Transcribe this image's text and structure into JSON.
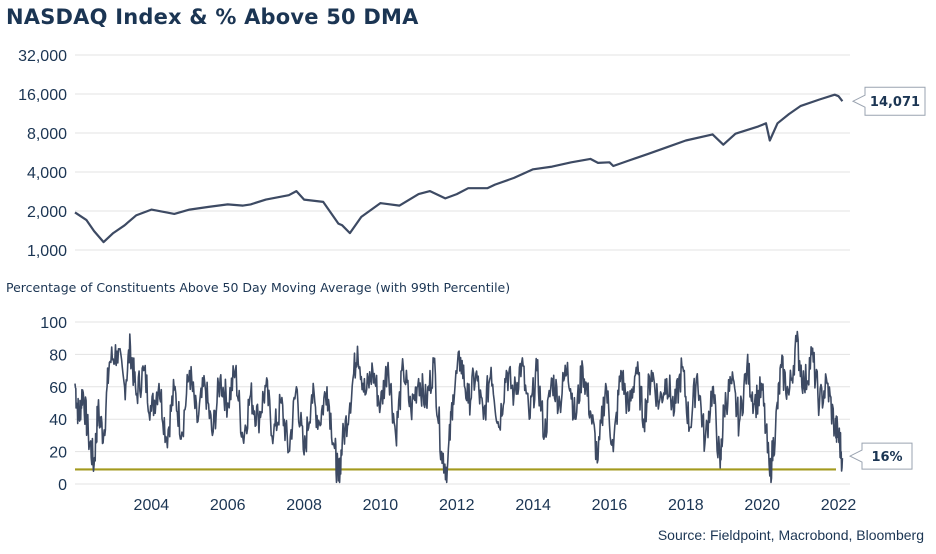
{
  "title": "NASDAQ Index & % Above 50 DMA",
  "subtitle": "Percentage of Constituents Above 50 Day Moving Average (with 99th Percentile)",
  "source": "Source: Fieldpoint, Macrobond, Bloomberg",
  "colors": {
    "line": "#3d4a63",
    "threshold": "#a39a1f",
    "text": "#1b3553",
    "grid": "#e3e3e3"
  },
  "chart_data": [
    {
      "type": "line",
      "title": "NASDAQ Index & % Above 50 DMA",
      "yscale": "log",
      "ylim": [
        1000,
        32000
      ],
      "yticks": [
        1000,
        2000,
        4000,
        8000,
        16000,
        32000
      ],
      "ytick_labels": [
        "1,000",
        "2,000",
        "4,000",
        "8,000",
        "16,000",
        "32,000"
      ],
      "xlim": [
        2002.0,
        2022.3
      ],
      "grid": true,
      "last_value_label": "14,071",
      "series": [
        {
          "x": [
            2002.0,
            2002.3,
            2002.5,
            2002.75,
            2003.0,
            2003.3,
            2003.6,
            2004.0,
            2004.4,
            2004.6,
            2005.0,
            2005.5,
            2006.0,
            2006.4,
            2006.6,
            2007.0,
            2007.6,
            2007.8,
            2008.0,
            2008.5,
            2008.9,
            2009.0,
            2009.2,
            2009.5,
            2010.0,
            2010.5,
            2011.0,
            2011.3,
            2011.7,
            2012.0,
            2012.3,
            2012.8,
            2013.0,
            2013.5,
            2014.0,
            2014.5,
            2015.0,
            2015.5,
            2015.7,
            2016.0,
            2016.1,
            2016.5,
            2017.0,
            2017.5,
            2018.0,
            2018.7,
            2018.98,
            2019.3,
            2019.9,
            2020.1,
            2020.2,
            2020.4,
            2020.7,
            2021.0,
            2021.5,
            2021.9,
            2022.0,
            2022.1
          ],
          "values": [
            1950,
            1700,
            1400,
            1150,
            1350,
            1550,
            1850,
            2050,
            1950,
            1900,
            2050,
            2150,
            2250,
            2200,
            2250,
            2450,
            2650,
            2850,
            2450,
            2350,
            1600,
            1550,
            1350,
            1800,
            2300,
            2200,
            2700,
            2850,
            2500,
            2700,
            3000,
            3000,
            3200,
            3600,
            4200,
            4400,
            4750,
            5050,
            4700,
            4750,
            4450,
            4900,
            5500,
            6200,
            7000,
            7800,
            6500,
            7900,
            9000,
            9500,
            7000,
            9500,
            11200,
            12900,
            14500,
            15800,
            15400,
            14071
          ]
        }
      ]
    },
    {
      "type": "line",
      "title": "Percentage of Constituents Above 50 Day Moving Average (with 99th Percentile)",
      "ylim": [
        0,
        100
      ],
      "yticks": [
        0,
        20,
        40,
        60,
        80,
        100
      ],
      "xlim": [
        2002.0,
        2022.3
      ],
      "xticks": [
        2004,
        2006,
        2008,
        2010,
        2012,
        2014,
        2016,
        2018,
        2020,
        2022
      ],
      "grid": true,
      "threshold": 9,
      "last_value_label": "16%",
      "series": [
        {
          "x": [
            2002.0,
            2002.1,
            2002.2,
            2002.35,
            2002.5,
            2002.6,
            2002.75,
            2002.9,
            2003.1,
            2003.3,
            2003.45,
            2003.6,
            2003.8,
            2004.0,
            2004.2,
            2004.4,
            2004.6,
            2004.8,
            2005.0,
            2005.2,
            2005.4,
            2005.6,
            2005.8,
            2006.0,
            2006.2,
            2006.4,
            2006.6,
            2006.8,
            2007.0,
            2007.2,
            2007.4,
            2007.6,
            2007.8,
            2008.0,
            2008.2,
            2008.4,
            2008.6,
            2008.8,
            2008.9,
            2009.0,
            2009.2,
            2009.4,
            2009.6,
            2009.8,
            2010.0,
            2010.2,
            2010.4,
            2010.6,
            2010.8,
            2011.0,
            2011.2,
            2011.4,
            2011.6,
            2011.75,
            2011.9,
            2012.1,
            2012.3,
            2012.5,
            2012.7,
            2012.9,
            2013.1,
            2013.3,
            2013.5,
            2013.7,
            2013.9,
            2014.1,
            2014.3,
            2014.5,
            2014.7,
            2014.9,
            2015.1,
            2015.3,
            2015.5,
            2015.7,
            2015.9,
            2016.1,
            2016.3,
            2016.5,
            2016.7,
            2016.9,
            2017.1,
            2017.3,
            2017.5,
            2017.7,
            2017.9,
            2018.1,
            2018.3,
            2018.5,
            2018.7,
            2018.9,
            2019.0,
            2019.2,
            2019.4,
            2019.6,
            2019.8,
            2020.0,
            2020.2,
            2020.35,
            2020.5,
            2020.7,
            2020.9,
            2021.1,
            2021.3,
            2021.5,
            2021.7,
            2021.9,
            2022.0,
            2022.1
          ],
          "values": [
            62,
            40,
            58,
            30,
            12,
            45,
            30,
            75,
            82,
            60,
            85,
            55,
            70,
            45,
            62,
            28,
            58,
            32,
            70,
            38,
            62,
            30,
            65,
            50,
            70,
            28,
            55,
            40,
            60,
            30,
            50,
            20,
            60,
            18,
            55,
            38,
            60,
            22,
            2,
            25,
            50,
            85,
            55,
            70,
            48,
            75,
            30,
            72,
            45,
            65,
            50,
            75,
            20,
            8,
            55,
            78,
            50,
            68,
            40,
            72,
            35,
            70,
            55,
            75,
            40,
            70,
            30,
            65,
            50,
            75,
            40,
            72,
            45,
            15,
            62,
            20,
            70,
            45,
            72,
            40,
            70,
            50,
            65,
            45,
            72,
            35,
            68,
            25,
            60,
            10,
            48,
            62,
            38,
            72,
            50,
            58,
            5,
            35,
            72,
            55,
            88,
            60,
            80,
            50,
            62,
            35,
            30,
            16
          ]
        }
      ]
    }
  ]
}
